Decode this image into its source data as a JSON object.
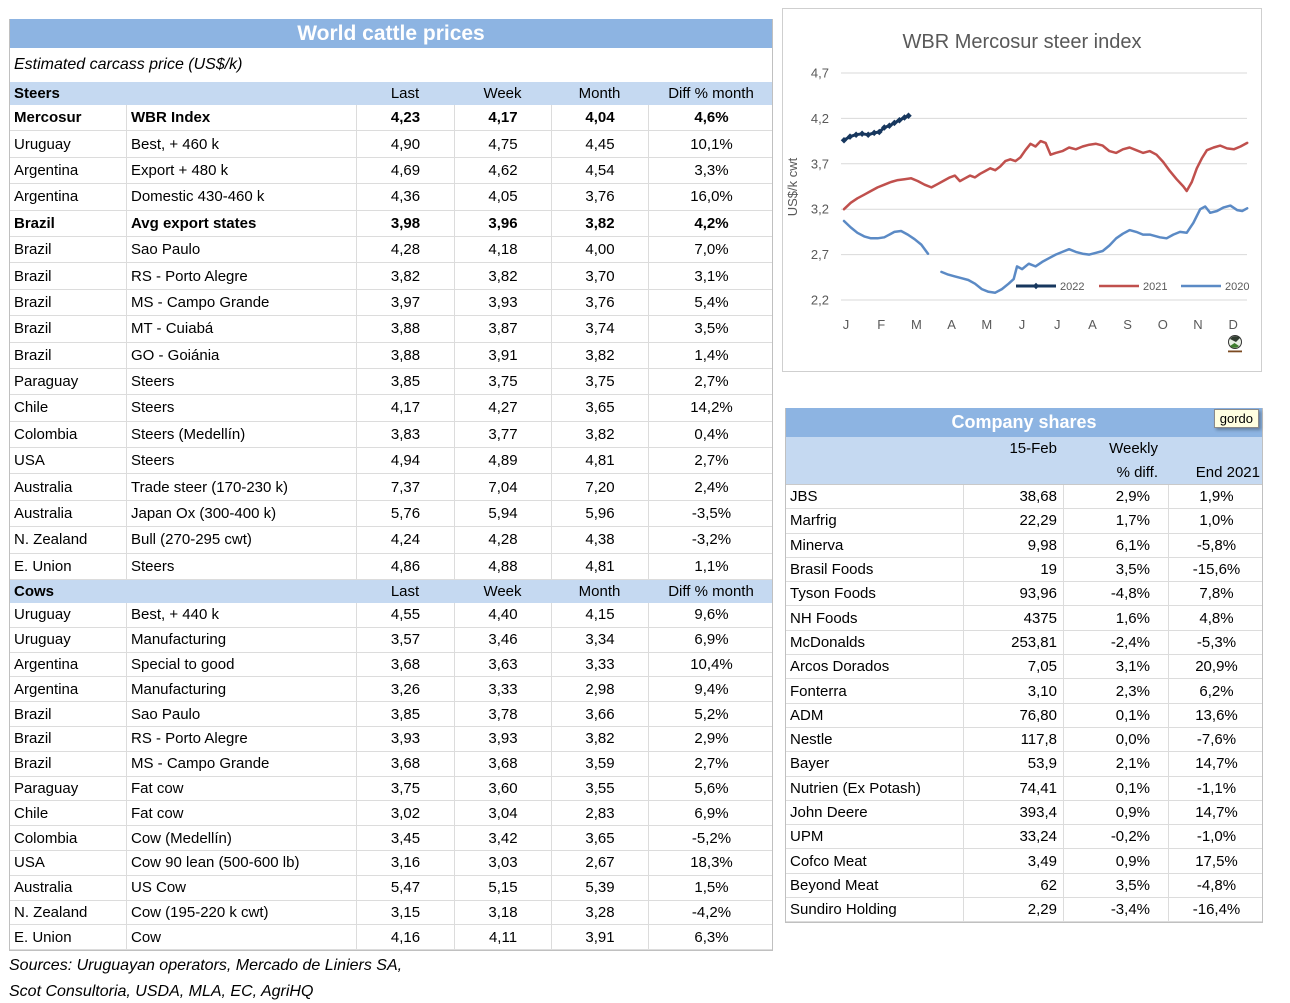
{
  "world_table": {
    "title": "World cattle prices",
    "subtitle": "Estimated carcass price (US$/k)",
    "columns": [
      "Last",
      "Week",
      "Month",
      "Diff % month"
    ],
    "sections": [
      {
        "name": "Steers",
        "bold_rows": [
          0,
          4
        ],
        "rows": [
          [
            "Mercosur",
            "WBR Index",
            "4,23",
            "4,17",
            "4,04",
            "4,6%"
          ],
          [
            "Uruguay",
            "Best, + 460 k",
            "4,90",
            "4,75",
            "4,45",
            "10,1%"
          ],
          [
            "Argentina",
            "Export + 480 k",
            "4,69",
            "4,62",
            "4,54",
            "3,3%"
          ],
          [
            "Argentina",
            "Domestic 430-460 k",
            "4,36",
            "4,05",
            "3,76",
            "16,0%"
          ],
          [
            "Brazil",
            "Avg export states",
            "3,98",
            "3,96",
            "3,82",
            "4,2%"
          ],
          [
            "Brazil",
            "Sao Paulo",
            "4,28",
            "4,18",
            "4,00",
            "7,0%"
          ],
          [
            "Brazil",
            "RS - Porto Alegre",
            "3,82",
            "3,82",
            "3,70",
            "3,1%"
          ],
          [
            "Brazil",
            "MS - Campo Grande",
            "3,97",
            "3,93",
            "3,76",
            "5,4%"
          ],
          [
            "Brazil",
            "MT - Cuiabá",
            "3,88",
            "3,87",
            "3,74",
            "3,5%"
          ],
          [
            "Brazil",
            "GO - Goiánia",
            "3,88",
            "3,91",
            "3,82",
            "1,4%"
          ],
          [
            "Paraguay",
            "Steers",
            "3,85",
            "3,75",
            "3,75",
            "2,7%"
          ],
          [
            "Chile",
            "Steers",
            "4,17",
            "4,27",
            "3,65",
            "14,2%"
          ],
          [
            "Colombia",
            "Steers (Medellín)",
            "3,83",
            "3,77",
            "3,82",
            "0,4%"
          ],
          [
            "USA",
            "Steers",
            "4,94",
            "4,89",
            "4,81",
            "2,7%"
          ],
          [
            "Australia",
            "Trade steer (170-230 k)",
            "7,37",
            "7,04",
            "7,20",
            "2,4%"
          ],
          [
            "Australia",
            "Japan Ox (300-400 k)",
            "5,76",
            "5,94",
            "5,96",
            "-3,5%"
          ],
          [
            "N. Zealand",
            "Bull (270-295 cwt)",
            "4,24",
            "4,28",
            "4,38",
            "-3,2%"
          ],
          [
            "E. Union",
            "Steers",
            "4,86",
            "4,88",
            "4,81",
            "1,1%"
          ]
        ]
      },
      {
        "name": "Cows",
        "bold_rows": [],
        "rows": [
          [
            "Uruguay",
            "Best, + 440 k",
            "4,55",
            "4,40",
            "4,15",
            "9,6%"
          ],
          [
            "Uruguay",
            "Manufacturing",
            "3,57",
            "3,46",
            "3,34",
            "6,9%"
          ],
          [
            "Argentina",
            "Special to good",
            "3,68",
            "3,63",
            "3,33",
            "10,4%"
          ],
          [
            "Argentina",
            "Manufacturing",
            "3,26",
            "3,33",
            "2,98",
            "9,4%"
          ],
          [
            "Brazil",
            "Sao Paulo",
            "3,85",
            "3,78",
            "3,66",
            "5,2%"
          ],
          [
            "Brazil",
            "RS - Porto Alegre",
            "3,93",
            "3,93",
            "3,82",
            "2,9%"
          ],
          [
            "Brazil",
            "MS - Campo Grande",
            "3,68",
            "3,68",
            "3,59",
            "2,7%"
          ],
          [
            "Paraguay",
            "Fat cow",
            "3,75",
            "3,60",
            "3,55",
            "5,6%"
          ],
          [
            "Chile",
            "Fat cow",
            "3,02",
            "3,04",
            "2,83",
            "6,9%"
          ],
          [
            "Colombia",
            "Cow (Medellín)",
            "3,45",
            "3,42",
            "3,65",
            "-5,2%"
          ],
          [
            "USA",
            "Cow 90 lean (500-600 lb)",
            "3,16",
            "3,03",
            "2,67",
            "18,3%"
          ],
          [
            "Australia",
            "US Cow",
            "5,47",
            "5,15",
            "5,39",
            "1,5%"
          ],
          [
            "N. Zealand",
            "Cow (195-220 k cwt)",
            "3,15",
            "3,18",
            "3,28",
            "-4,2%"
          ],
          [
            "E. Union",
            "Cow",
            "4,16",
            "4,11",
            "3,91",
            "6,3%"
          ]
        ]
      }
    ],
    "sources": [
      "Sources: Uruguayan operators, Mercado de Liniers SA,",
      "Scot Consultoria, USDA, MLA, EC, AgriHQ"
    ]
  },
  "company_table": {
    "title": "Company shares",
    "tooltip": "gordo",
    "headers": {
      "date": "15-Feb",
      "weekly_l1": "Weekly",
      "weekly_l2": "% diff.",
      "end": "End 2021"
    },
    "rows": [
      [
        "JBS",
        "38,68",
        "2,9%",
        "1,9%"
      ],
      [
        "Marfrig",
        "22,29",
        "1,7%",
        "1,0%"
      ],
      [
        "Minerva",
        "9,98",
        "6,1%",
        "-5,8%"
      ],
      [
        "Brasil Foods",
        "19",
        "3,5%",
        "-15,6%"
      ],
      [
        "Tyson Foods",
        "93,96",
        "-4,8%",
        "7,8%"
      ],
      [
        "NH Foods",
        "4375",
        "1,6%",
        "4,8%"
      ],
      [
        "McDonalds",
        "253,81",
        "-2,4%",
        "-5,3%"
      ],
      [
        "Arcos Dorados",
        "7,05",
        "3,1%",
        "20,9%"
      ],
      [
        "Fonterra",
        "3,10",
        "2,3%",
        "6,2%"
      ],
      [
        "ADM",
        "76,80",
        "0,1%",
        "13,6%"
      ],
      [
        "Nestle",
        "117,8",
        "0,0%",
        "-7,6%"
      ],
      [
        "Bayer",
        "53,9",
        "2,1%",
        "14,7%"
      ],
      [
        "Nutrien (Ex Potash)",
        "74,41",
        "0,1%",
        "-1,1%"
      ],
      [
        "John Deere",
        "393,4",
        "0,9%",
        "14,7%"
      ],
      [
        "UPM",
        "33,24",
        "-0,2%",
        "-1,0%"
      ],
      [
        "Cofco Meat",
        "3,49",
        "0,9%",
        "17,5%"
      ],
      [
        "Beyond Meat",
        "62",
        "3,5%",
        "-4,8%"
      ],
      [
        "Sundiro Holding",
        "2,29",
        "-3,4%",
        "-16,4%"
      ]
    ]
  },
  "chart_data": {
    "type": "line",
    "title": "WBR Mercosur steer index",
    "ylabel": "US$/k cwt",
    "ylim": [
      2.2,
      4.7
    ],
    "yticks": [
      "4,7",
      "4,2",
      "3,7",
      "3,2",
      "2,7",
      "2,2"
    ],
    "ytick_values": [
      4.7,
      4.2,
      3.7,
      3.2,
      2.7,
      2.2
    ],
    "xticks": [
      "J",
      "F",
      "M",
      "A",
      "M",
      "J",
      "J",
      "A",
      "S",
      "O",
      "N",
      "D"
    ],
    "grid": true,
    "legend_position": "inside-bottom",
    "series": [
      {
        "name": "2022",
        "color": "#17375e",
        "width": 3,
        "marker": true,
        "segments": [
          [
            [
              0,
              3.96
            ],
            [
              0.18,
              4.0
            ],
            [
              0.36,
              4.02
            ],
            [
              0.54,
              4.03
            ],
            [
              0.72,
              4.02
            ],
            [
              0.9,
              4.04
            ],
            [
              1.05,
              4.05
            ],
            [
              1.2,
              4.1
            ],
            [
              1.35,
              4.12
            ],
            [
              1.5,
              4.15
            ],
            [
              1.65,
              4.18
            ],
            [
              1.8,
              4.21
            ],
            [
              1.92,
              4.23
            ]
          ]
        ]
      },
      {
        "name": "2021",
        "color": "#c0504d",
        "width": 2.5,
        "marker": false,
        "segments": [
          [
            [
              0,
              3.2
            ],
            [
              0.2,
              3.27
            ],
            [
              0.4,
              3.32
            ],
            [
              0.6,
              3.36
            ],
            [
              0.8,
              3.4
            ],
            [
              1.0,
              3.44
            ],
            [
              1.2,
              3.47
            ],
            [
              1.4,
              3.5
            ],
            [
              1.6,
              3.52
            ],
            [
              1.8,
              3.53
            ],
            [
              2.0,
              3.54
            ],
            [
              2.2,
              3.51
            ],
            [
              2.4,
              3.47
            ],
            [
              2.6,
              3.44
            ],
            [
              2.8,
              3.48
            ],
            [
              3.0,
              3.52
            ],
            [
              3.15,
              3.55
            ],
            [
              3.3,
              3.57
            ],
            [
              3.45,
              3.51
            ],
            [
              3.6,
              3.54
            ],
            [
              3.75,
              3.57
            ],
            [
              3.9,
              3.55
            ],
            [
              4.05,
              3.59
            ],
            [
              4.2,
              3.62
            ],
            [
              4.35,
              3.65
            ],
            [
              4.5,
              3.63
            ],
            [
              4.65,
              3.67
            ],
            [
              4.8,
              3.73
            ],
            [
              4.95,
              3.75
            ],
            [
              5.1,
              3.73
            ],
            [
              5.25,
              3.77
            ],
            [
              5.4,
              3.85
            ],
            [
              5.55,
              3.92
            ],
            [
              5.7,
              3.89
            ],
            [
              5.85,
              3.95
            ],
            [
              6.0,
              3.93
            ],
            [
              6.15,
              3.8
            ],
            [
              6.3,
              3.82
            ],
            [
              6.5,
              3.84
            ],
            [
              6.7,
              3.88
            ],
            [
              6.9,
              3.86
            ],
            [
              7.1,
              3.89
            ],
            [
              7.3,
              3.91
            ],
            [
              7.5,
              3.92
            ],
            [
              7.7,
              3.9
            ],
            [
              7.9,
              3.84
            ],
            [
              8.1,
              3.82
            ],
            [
              8.3,
              3.86
            ],
            [
              8.5,
              3.88
            ],
            [
              8.7,
              3.85
            ],
            [
              8.9,
              3.82
            ],
            [
              9.1,
              3.84
            ],
            [
              9.3,
              3.8
            ],
            [
              9.5,
              3.72
            ],
            [
              9.7,
              3.62
            ],
            [
              9.9,
              3.53
            ],
            [
              10.1,
              3.45
            ],
            [
              10.2,
              3.4
            ],
            [
              10.35,
              3.5
            ],
            [
              10.5,
              3.65
            ],
            [
              10.65,
              3.76
            ],
            [
              10.8,
              3.85
            ],
            [
              11.0,
              3.88
            ],
            [
              11.2,
              3.9
            ],
            [
              11.4,
              3.87
            ],
            [
              11.6,
              3.86
            ],
            [
              11.8,
              3.89
            ],
            [
              12.0,
              3.93
            ]
          ]
        ]
      },
      {
        "name": "2020",
        "color": "#5b8ac5",
        "width": 2.5,
        "marker": false,
        "segments": [
          [
            [
              0,
              3.07
            ],
            [
              0.2,
              3.0
            ],
            [
              0.4,
              2.94
            ],
            [
              0.6,
              2.9
            ],
            [
              0.8,
              2.88
            ],
            [
              1.0,
              2.88
            ],
            [
              1.2,
              2.89
            ],
            [
              1.5,
              2.95
            ],
            [
              1.7,
              2.96
            ],
            [
              1.9,
              2.92
            ],
            [
              2.1,
              2.87
            ],
            [
              2.3,
              2.81
            ],
            [
              2.5,
              2.71
            ]
          ],
          [
            [
              2.9,
              2.51
            ],
            [
              3.1,
              2.48
            ],
            [
              3.3,
              2.46
            ],
            [
              3.5,
              2.44
            ],
            [
              3.7,
              2.42
            ],
            [
              3.9,
              2.38
            ],
            [
              4.1,
              2.32
            ],
            [
              4.3,
              2.29
            ],
            [
              4.5,
              2.28
            ],
            [
              4.7,
              2.32
            ],
            [
              4.9,
              2.38
            ],
            [
              5.05,
              2.43
            ],
            [
              5.15,
              2.57
            ],
            [
              5.3,
              2.54
            ],
            [
              5.5,
              2.6
            ],
            [
              5.7,
              2.57
            ],
            [
              5.9,
              2.62
            ],
            [
              6.1,
              2.66
            ],
            [
              6.3,
              2.7
            ],
            [
              6.5,
              2.73
            ],
            [
              6.7,
              2.76
            ],
            [
              6.9,
              2.73
            ],
            [
              7.1,
              2.71
            ],
            [
              7.3,
              2.7
            ],
            [
              7.5,
              2.72
            ],
            [
              7.7,
              2.74
            ],
            [
              7.9,
              2.8
            ],
            [
              8.1,
              2.88
            ],
            [
              8.3,
              2.93
            ],
            [
              8.5,
              2.97
            ],
            [
              8.7,
              2.95
            ],
            [
              8.9,
              2.92
            ],
            [
              9.1,
              2.92
            ],
            [
              9.4,
              2.89
            ],
            [
              9.6,
              2.88
            ],
            [
              9.8,
              2.92
            ],
            [
              10.0,
              2.95
            ],
            [
              10.2,
              2.94
            ],
            [
              10.4,
              3.05
            ],
            [
              10.6,
              3.2
            ],
            [
              10.75,
              3.23
            ],
            [
              10.9,
              3.16
            ],
            [
              11.1,
              3.18
            ],
            [
              11.3,
              3.22
            ],
            [
              11.5,
              3.24
            ],
            [
              11.7,
              3.19
            ],
            [
              11.85,
              3.18
            ],
            [
              12.0,
              3.21
            ]
          ]
        ]
      }
    ]
  }
}
